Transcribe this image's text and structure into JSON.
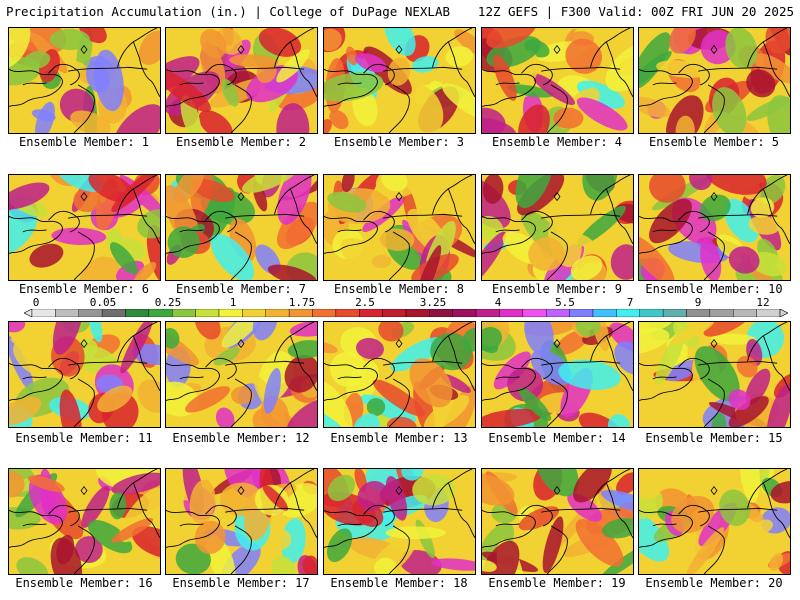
{
  "header": {
    "title": "Precipitation Accumulation (in.) | College of DuPage NEXLAB",
    "run": "12Z GEFS | F300 Valid: 00Z FRI JUN 20 2025"
  },
  "panels": [
    {
      "label": "Ensemble Member: 1"
    },
    {
      "label": "Ensemble Member: 2"
    },
    {
      "label": "Ensemble Member: 3"
    },
    {
      "label": "Ensemble Member: 4"
    },
    {
      "label": "Ensemble Member: 5"
    },
    {
      "label": "Ensemble Member: 6"
    },
    {
      "label": "Ensemble Member: 7"
    },
    {
      "label": "Ensemble Member: 8"
    },
    {
      "label": "Ensemble Member: 9"
    },
    {
      "label": "Ensemble Member: 10"
    },
    {
      "label": "Ensemble Member: 11"
    },
    {
      "label": "Ensemble Member: 12"
    },
    {
      "label": "Ensemble Member: 13"
    },
    {
      "label": "Ensemble Member: 14"
    },
    {
      "label": "Ensemble Member: 15"
    },
    {
      "label": "Ensemble Member: 16"
    },
    {
      "label": "Ensemble Member: 17"
    },
    {
      "label": "Ensemble Member: 18"
    },
    {
      "label": "Ensemble Member: 19"
    },
    {
      "label": "Ensemble Member: 20"
    }
  ],
  "colorbar": {
    "tick_labels": [
      "0",
      "0.05",
      "0.25",
      "1",
      "1.75",
      "2.5",
      "3.25",
      "4",
      "5.5",
      "7",
      "9",
      "12"
    ],
    "colors": [
      "#e6e6e6",
      "#bdbdbd",
      "#969696",
      "#6e6e6e",
      "#2e8b3e",
      "#3ea83e",
      "#8cc63f",
      "#c8e03a",
      "#f2f23a",
      "#f2d233",
      "#f2b233",
      "#f29433",
      "#f27033",
      "#e84a2e",
      "#d9232e",
      "#c01c2e",
      "#a8142e",
      "#901040",
      "#a01060",
      "#c0208a",
      "#e030c8",
      "#f050f0",
      "#c060ff",
      "#8080ff",
      "#40c0ff",
      "#40f0f0",
      "#40c8c8",
      "#60b0b0",
      "#909090",
      "#a0a0a0",
      "#b8b8b8",
      "#d0d0d0"
    ]
  }
}
